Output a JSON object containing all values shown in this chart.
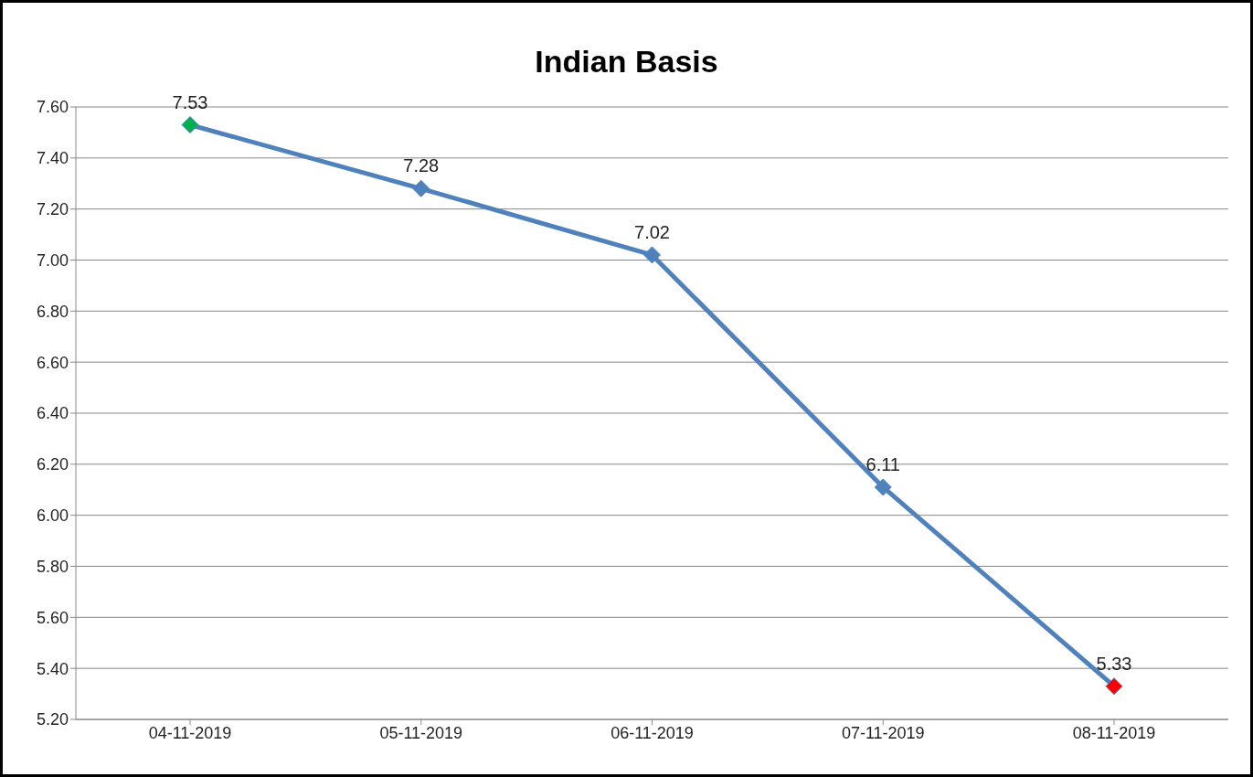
{
  "chart_data": {
    "type": "line",
    "title": "Indian Basis",
    "categories": [
      "04-11-2019",
      "05-11-2019",
      "06-11-2019",
      "07-11-2019",
      "08-11-2019"
    ],
    "series": [
      {
        "color": "#4f81bd",
        "values": [
          7.53,
          7.28,
          7.02,
          6.11,
          5.33
        ],
        "colors": [
          "#00b050",
          "#4f81bd",
          "#4f81bd",
          "#4f81bd",
          "#ff0000"
        ]
      }
    ],
    "ylim": [
      5.2,
      7.6
    ],
    "yticks": [
      {
        "value": 5.2,
        "label": "5.20"
      },
      {
        "value": 5.4,
        "label": "5.40"
      },
      {
        "value": 5.6,
        "label": "5.60"
      },
      {
        "value": 5.8,
        "label": "5.80"
      },
      {
        "value": 6.0,
        "label": "6.00"
      },
      {
        "value": 6.2,
        "label": "6.20"
      },
      {
        "value": 6.4,
        "label": "6.40"
      },
      {
        "value": 6.6,
        "label": "6.60"
      },
      {
        "value": 6.8,
        "label": "6.80"
      },
      {
        "value": 7.0,
        "label": "7.00"
      },
      {
        "value": 7.2,
        "label": "7.20"
      },
      {
        "value": 7.4,
        "label": "7.40"
      },
      {
        "value": 7.6,
        "label": "7.60"
      }
    ],
    "grid": "y",
    "marker": "diamond",
    "line_style": "solid",
    "data_labels": true
  }
}
